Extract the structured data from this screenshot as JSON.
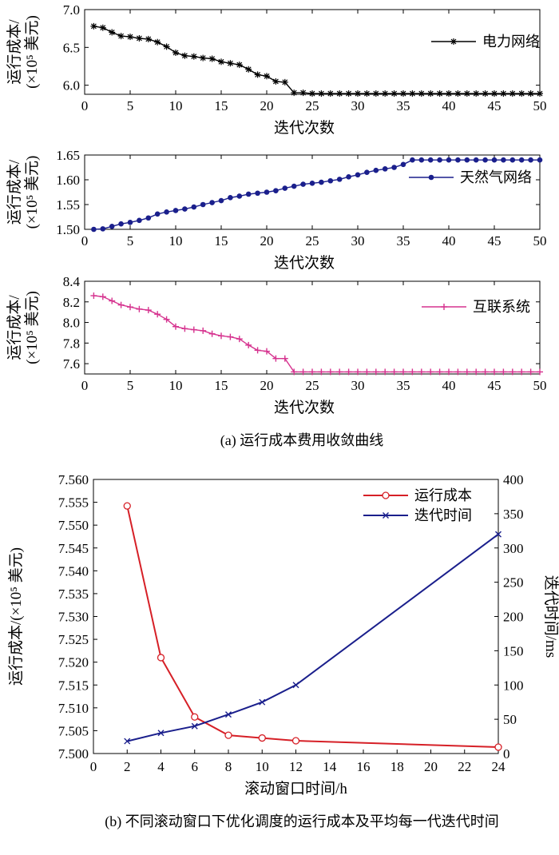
{
  "figure": {
    "caption_a": "(a) 运行成本费用收敛曲线",
    "caption_b": "(b) 不同滚动窗口下优化调度的运行成本及平均每一代迭代时间"
  },
  "colors": {
    "black": "#000000",
    "navy": "#1a1f8c",
    "magenta": "#d6338f",
    "red": "#d62027"
  },
  "chart_data": [
    {
      "id": "power",
      "type": "line",
      "marker": "asterisk",
      "xlabel": "迭代次数",
      "ylabel_line1": "运行成本/",
      "ylabel_line2": "(×10⁵ 美元)",
      "xlim": [
        0,
        50
      ],
      "ylim": [
        5.88,
        7.0
      ],
      "xticks": [
        0,
        5,
        10,
        15,
        20,
        25,
        30,
        35,
        40,
        45,
        50
      ],
      "yticks": [
        6.0,
        6.5,
        7.0
      ],
      "ytick_labels": [
        "6.0",
        "6.5",
        "7.0"
      ],
      "legend_position": "top-right",
      "series": [
        {
          "name": "电力网络",
          "color": "#000000",
          "x": [
            1,
            2,
            3,
            4,
            5,
            6,
            7,
            8,
            9,
            10,
            11,
            12,
            13,
            14,
            15,
            16,
            17,
            18,
            19,
            20,
            21,
            22,
            23,
            24,
            25,
            26,
            27,
            28,
            29,
            30,
            31,
            32,
            33,
            34,
            35,
            36,
            37,
            38,
            39,
            40,
            41,
            42,
            43,
            44,
            45,
            46,
            47,
            48,
            49,
            50
          ],
          "values": [
            6.78,
            6.76,
            6.7,
            6.65,
            6.64,
            6.62,
            6.61,
            6.57,
            6.51,
            6.43,
            6.39,
            6.38,
            6.36,
            6.35,
            6.31,
            6.29,
            6.27,
            6.21,
            6.14,
            6.12,
            6.05,
            6.04,
            5.9,
            5.9,
            5.89,
            5.89,
            5.89,
            5.89,
            5.89,
            5.89,
            5.89,
            5.89,
            5.89,
            5.89,
            5.89,
            5.89,
            5.89,
            5.89,
            5.89,
            5.89,
            5.89,
            5.89,
            5.89,
            5.89,
            5.89,
            5.89,
            5.89,
            5.89,
            5.89,
            5.89
          ]
        }
      ]
    },
    {
      "id": "gas",
      "type": "line",
      "marker": "dot",
      "xlabel": "迭代次数",
      "ylabel_line1": "运行成本/",
      "ylabel_line2": "(×10⁵ 美元)",
      "xlim": [
        0,
        50
      ],
      "ylim": [
        1.5,
        1.65
      ],
      "xticks": [
        0,
        5,
        10,
        15,
        20,
        25,
        30,
        35,
        40,
        45,
        50
      ],
      "yticks": [
        1.5,
        1.55,
        1.6,
        1.65
      ],
      "ytick_labels": [
        "1.50",
        "1.55",
        "1.60",
        "1.65"
      ],
      "legend_position": "top-right",
      "series": [
        {
          "name": "天然气网络",
          "color": "#1a1f8c",
          "x": [
            1,
            2,
            3,
            4,
            5,
            6,
            7,
            8,
            9,
            10,
            11,
            12,
            13,
            14,
            15,
            16,
            17,
            18,
            19,
            20,
            21,
            22,
            23,
            24,
            25,
            26,
            27,
            28,
            29,
            30,
            31,
            32,
            33,
            34,
            35,
            36,
            37,
            38,
            39,
            40,
            41,
            42,
            43,
            44,
            45,
            46,
            47,
            48,
            49,
            50
          ],
          "values": [
            1.5,
            1.501,
            1.506,
            1.511,
            1.514,
            1.518,
            1.523,
            1.531,
            1.535,
            1.538,
            1.541,
            1.545,
            1.55,
            1.554,
            1.558,
            1.564,
            1.567,
            1.571,
            1.573,
            1.575,
            1.578,
            1.583,
            1.587,
            1.591,
            1.593,
            1.595,
            1.598,
            1.601,
            1.606,
            1.61,
            1.615,
            1.619,
            1.622,
            1.625,
            1.631,
            1.64,
            1.64,
            1.64,
            1.64,
            1.64,
            1.64,
            1.64,
            1.64,
            1.64,
            1.64,
            1.64,
            1.64,
            1.64,
            1.64,
            1.64
          ]
        }
      ]
    },
    {
      "id": "interconnect",
      "type": "line",
      "marker": "plus",
      "xlabel": "迭代次数",
      "ylabel_line1": "运行成本/",
      "ylabel_line2": "(×10⁵ 美元)",
      "xlim": [
        0,
        50
      ],
      "ylim": [
        7.5,
        8.4
      ],
      "xticks": [
        0,
        5,
        10,
        15,
        20,
        25,
        30,
        35,
        40,
        45,
        50
      ],
      "yticks": [
        7.6,
        7.8,
        8.0,
        8.2,
        8.4
      ],
      "ytick_labels": [
        "7.6",
        "7.8",
        "8.0",
        "8.2",
        "8.4"
      ],
      "legend_position": "top-right",
      "series": [
        {
          "name": "互联系统",
          "color": "#d6338f",
          "x": [
            1,
            2,
            3,
            4,
            5,
            6,
            7,
            8,
            9,
            10,
            11,
            12,
            13,
            14,
            15,
            16,
            17,
            18,
            19,
            20,
            21,
            22,
            23,
            24,
            25,
            26,
            27,
            28,
            29,
            30,
            31,
            32,
            33,
            34,
            35,
            36,
            37,
            38,
            39,
            40,
            41,
            42,
            43,
            44,
            45,
            46,
            47,
            48,
            49,
            50
          ],
          "values": [
            8.26,
            8.25,
            8.21,
            8.17,
            8.15,
            8.13,
            8.12,
            8.08,
            8.03,
            7.96,
            7.94,
            7.93,
            7.92,
            7.89,
            7.87,
            7.86,
            7.84,
            7.78,
            7.73,
            7.72,
            7.65,
            7.65,
            7.52,
            7.52,
            7.52,
            7.52,
            7.52,
            7.52,
            7.52,
            7.52,
            7.52,
            7.52,
            7.52,
            7.52,
            7.52,
            7.52,
            7.52,
            7.52,
            7.52,
            7.52,
            7.52,
            7.52,
            7.52,
            7.52,
            7.52,
            7.52,
            7.52,
            7.52,
            7.52,
            7.52
          ]
        }
      ]
    },
    {
      "id": "window",
      "type": "line",
      "xlabel": "滚动窗口时间/h",
      "ylabel_left": "运行成本/(×10⁵ 美元)",
      "ylabel_right": "迭代时间/ms",
      "xlim": [
        0,
        24
      ],
      "ylim_left": [
        7.5,
        7.56
      ],
      "ylim_right": [
        0,
        400
      ],
      "xticks": [
        0,
        2,
        4,
        6,
        8,
        10,
        12,
        14,
        16,
        18,
        20,
        22,
        24
      ],
      "yticks_left": [
        7.5,
        7.505,
        7.51,
        7.515,
        7.52,
        7.525,
        7.53,
        7.535,
        7.54,
        7.545,
        7.55,
        7.555,
        7.56
      ],
      "ytick_labels_left": [
        "7.500",
        "7.505",
        "7.510",
        "7.515",
        "7.520",
        "7.525",
        "7.530",
        "7.535",
        "7.540",
        "7.545",
        "7.550",
        "7.555",
        "7.560"
      ],
      "yticks_right": [
        0,
        50,
        100,
        150,
        200,
        250,
        300,
        350,
        400
      ],
      "legend_position": "top-right",
      "series": [
        {
          "name": "运行成本",
          "axis": "left",
          "marker": "circle",
          "color": "#d62027",
          "x": [
            2,
            4,
            6,
            8,
            10,
            12,
            24
          ],
          "values": [
            7.5542,
            7.521,
            7.508,
            7.504,
            7.5034,
            7.5028,
            7.5014
          ]
        },
        {
          "name": "迭代时间",
          "axis": "right",
          "marker": "x",
          "color": "#1a1f8c",
          "x": [
            2,
            4,
            6,
            8,
            10,
            12,
            24
          ],
          "values": [
            18,
            30,
            40,
            57,
            75,
            100,
            320
          ]
        }
      ]
    }
  ]
}
